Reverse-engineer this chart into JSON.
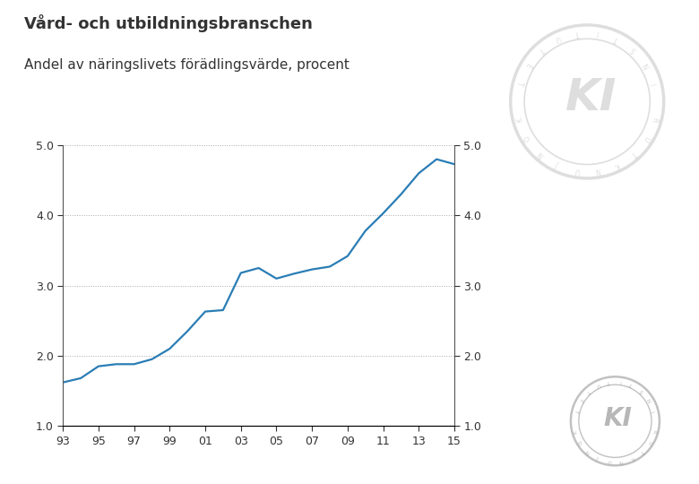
{
  "title": "Vård- och utbildningsbranschen",
  "subtitle": "Andel av näringslivets förädlingsvärde, procent",
  "title_fontsize": 13,
  "subtitle_fontsize": 11,
  "line_color": "#2a7db5",
  "background_color": "#ffffff",
  "years": [
    1993,
    1994,
    1995,
    1996,
    1997,
    1998,
    1999,
    2000,
    2001,
    2002,
    2003,
    2004,
    2005,
    2006,
    2007,
    2008,
    2009,
    2010,
    2011,
    2012,
    2013,
    2014,
    2015
  ],
  "values": [
    1.62,
    1.68,
    1.85,
    1.88,
    1.88,
    1.95,
    2.1,
    2.35,
    2.63,
    2.65,
    3.18,
    3.25,
    3.1,
    3.17,
    3.23,
    3.27,
    3.42,
    3.78,
    4.03,
    4.3,
    4.6,
    4.8,
    4.73
  ],
  "ylim": [
    1.0,
    5.0
  ],
  "yticks": [
    1.0,
    2.0,
    3.0,
    4.0,
    5.0
  ],
  "xlim": [
    1993,
    2015
  ],
  "xtick_labels": [
    "93",
    "95",
    "97",
    "99",
    "01",
    "03",
    "05",
    "07",
    "09",
    "11",
    "13",
    "15"
  ],
  "xtick_positions": [
    1993,
    1995,
    1997,
    1999,
    2001,
    2003,
    2005,
    2007,
    2009,
    2011,
    2013,
    2015
  ],
  "grid_color": "#aaaaaa",
  "line_width": 1.6
}
